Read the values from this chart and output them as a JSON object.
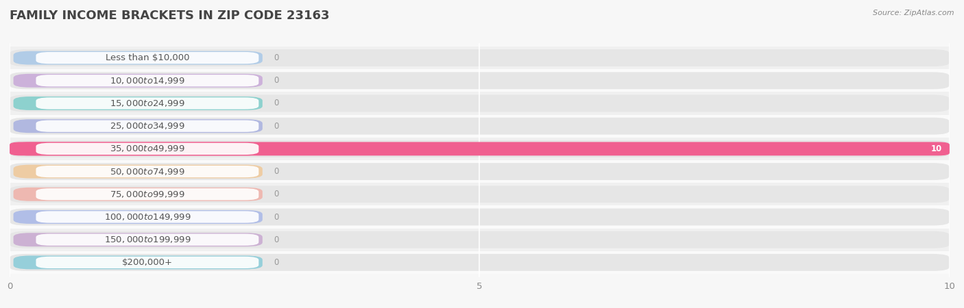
{
  "title": "FAMILY INCOME BRACKETS IN ZIP CODE 23163",
  "source": "Source: ZipAtlas.com",
  "categories": [
    "Less than $10,000",
    "$10,000 to $14,999",
    "$15,000 to $24,999",
    "$25,000 to $34,999",
    "$35,000 to $49,999",
    "$50,000 to $74,999",
    "$75,000 to $99,999",
    "$100,000 to $149,999",
    "$150,000 to $199,999",
    "$200,000+"
  ],
  "values": [
    0,
    0,
    0,
    0,
    10,
    0,
    0,
    0,
    0,
    0
  ],
  "bar_colors": [
    "#a8c8e8",
    "#c8a8d8",
    "#7ececa",
    "#a8b0e0",
    "#f06090",
    "#f0c898",
    "#f0b0a8",
    "#a8b8e8",
    "#c8a8d0",
    "#88ccd8"
  ],
  "xlim": [
    0,
    10
  ],
  "xticks": [
    0,
    5,
    10
  ],
  "background_color": "#f7f7f7",
  "bar_bg_color": "#e6e6e6",
  "row_bg_even": "#f0f0f0",
  "row_bg_odd": "#fafafa",
  "title_fontsize": 13,
  "label_fontsize": 9.5,
  "value_fontsize": 8.5
}
